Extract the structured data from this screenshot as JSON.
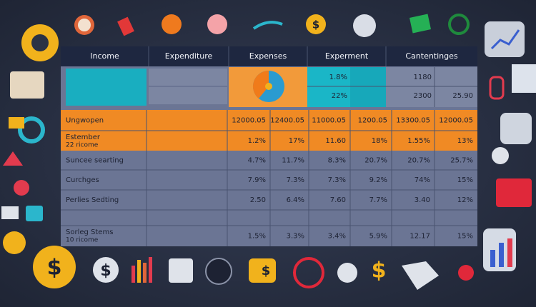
{
  "icons": {
    "dollar": "$"
  },
  "header": {
    "columns": [
      "Income",
      "Expenditure",
      "Expenses",
      "Experment",
      "Cantentinges"
    ]
  },
  "top_block": {
    "teal_cells": [
      "1.8%",
      "22%"
    ],
    "grey_cells": [
      "1180",
      "2300",
      "25.90"
    ]
  },
  "table": {
    "rows": [
      {
        "label": "Ungwopen",
        "values": [
          "12000.05",
          "12400.05",
          "11000.05",
          "1200.05",
          "13300.05",
          "12000.05"
        ]
      },
      {
        "label": "Estember",
        "sublabel": "22 ricome",
        "values": [
          "1.2%",
          "17%",
          "11.60",
          "18%",
          "1.55%",
          "13%"
        ]
      },
      {
        "label": "Suncee searting",
        "values": [
          "4.7%",
          "11.7%",
          "8.3%",
          "20.7%",
          "20.7%",
          "25.7%"
        ]
      },
      {
        "label": "Curchges",
        "values": [
          "7.9%",
          "7.3%",
          "7.3%",
          "9.2%",
          "74%",
          "15%"
        ]
      },
      {
        "label": "Perlies Sedting",
        "values": [
          "2.50",
          "6.4%",
          "7.60",
          "7.7%",
          "3.40",
          "12%"
        ]
      },
      {
        "label": "Sorleg Stems",
        "sublabel": "10 ricome",
        "values": [
          "1.5%",
          "3.3%",
          "3.4%",
          "5.9%",
          "12.17",
          "15%"
        ]
      }
    ]
  }
}
